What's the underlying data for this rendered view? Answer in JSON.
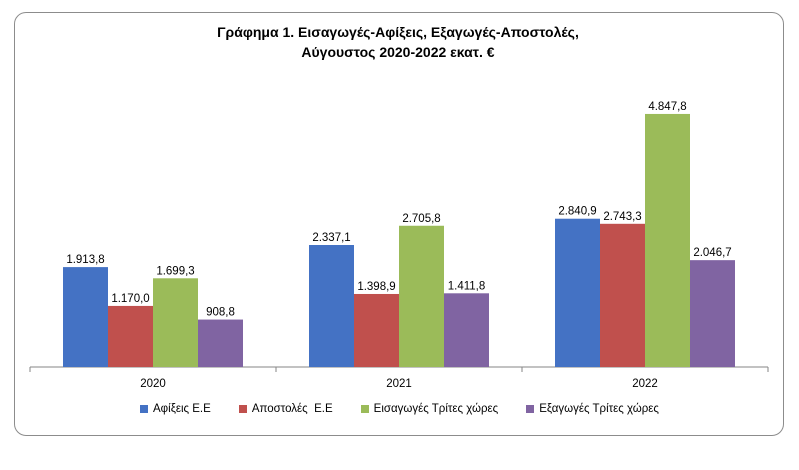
{
  "chart_data": {
    "type": "bar",
    "title_lines": [
      "Γράφημα 1. Εισαγωγές-Αφίξεις, Εξαγωγές-Αποστολές,",
      "Αύγουστος 2020-2022 εκατ. €"
    ],
    "categories": [
      "2020",
      "2021",
      "2022"
    ],
    "series": [
      {
        "name": "Αφίξεις Ε.Ε",
        "color": "#4472c4",
        "values": [
          1913.8,
          2337.1,
          2840.9
        ],
        "labels": [
          "1.913,8",
          "2.337,1",
          "2.840,9"
        ]
      },
      {
        "name": "Αποστολές  Ε.Ε",
        "color": "#c0504d",
        "values": [
          1170.0,
          1398.9,
          2743.3
        ],
        "labels": [
          "1.170,0",
          "1.398,9",
          "2.743,3"
        ]
      },
      {
        "name": "Εισαγωγές Τρίτες χώρες",
        "color": "#9bbb59",
        "values": [
          1699.3,
          2705.8,
          4847.8
        ],
        "labels": [
          "1.699,3",
          "2.705,8",
          "4.847,8"
        ]
      },
      {
        "name": "Εξαγωγές Τρίτες χώρες",
        "color": "#8064a2",
        "values": [
          908.8,
          1411.8,
          2046.7
        ],
        "labels": [
          "908,8",
          "1.411,8",
          "2.046,7"
        ]
      }
    ],
    "ylim": [
      0,
      5000
    ],
    "grid": false,
    "legend_position": "bottom"
  }
}
